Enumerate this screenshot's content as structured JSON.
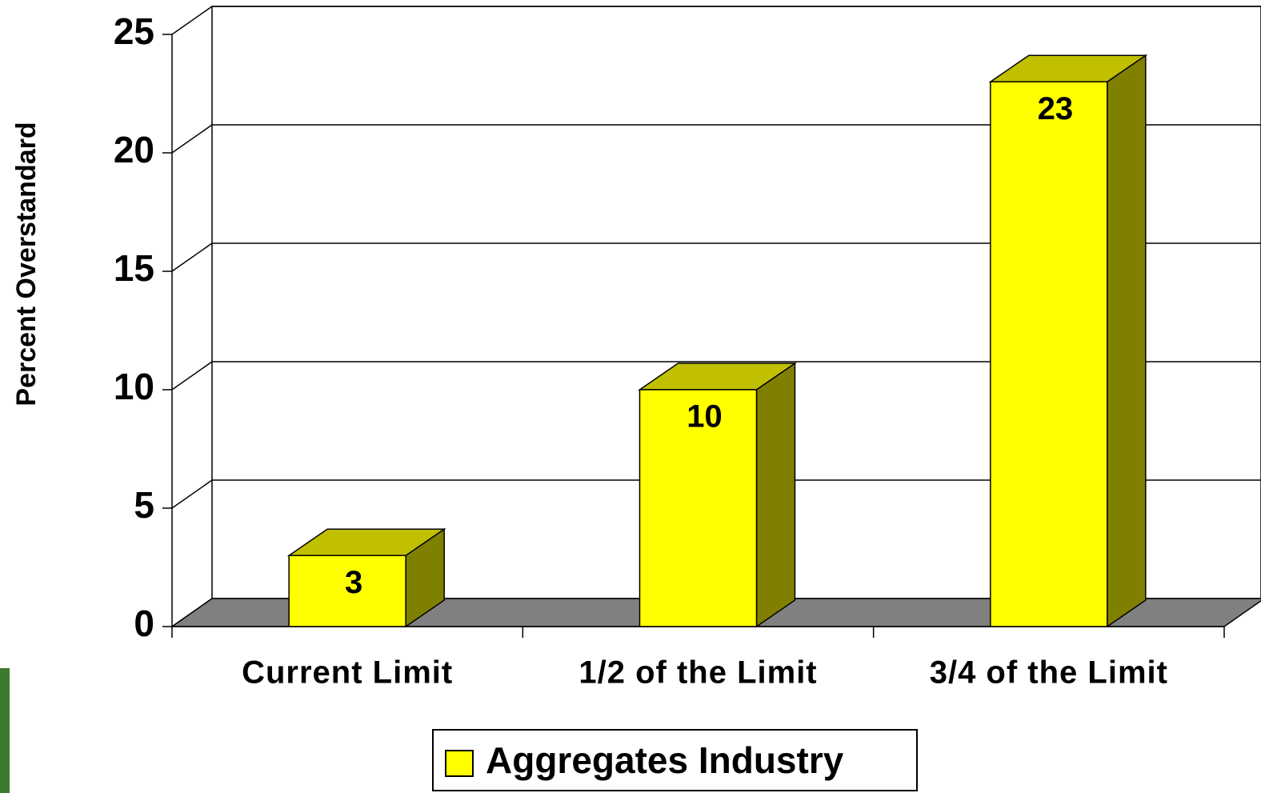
{
  "chart_data": {
    "type": "bar3d",
    "y_label": "Percent Overstandard",
    "categories": [
      "Current Limit",
      "1/2 of the Limit",
      "3/4 of the Limit"
    ],
    "series": [
      {
        "name": "Aggregates Industry",
        "color": "#ffff00",
        "values": [
          3,
          10,
          23
        ]
      }
    ],
    "ylim": [
      0,
      25
    ],
    "yticks": [
      0,
      5,
      10,
      15,
      20,
      25
    ],
    "grid": true
  }
}
